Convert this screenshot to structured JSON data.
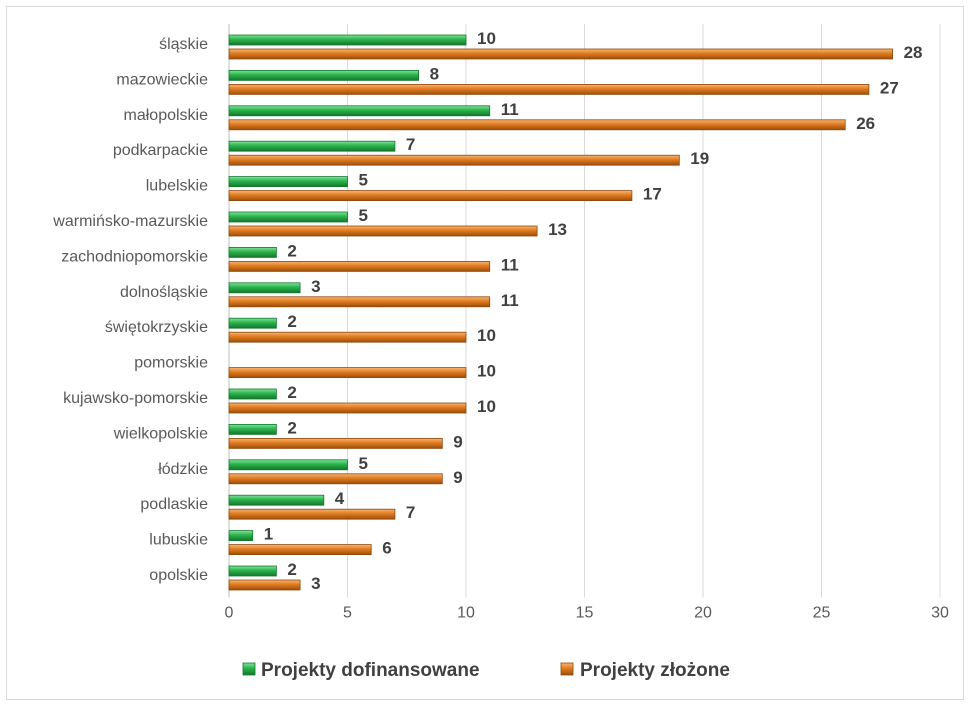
{
  "chart_data": {
    "type": "bar",
    "orientation": "horizontal",
    "categories": [
      "śląskie",
      "mazowieckie",
      "małopolskie",
      "podkarpackie",
      "lubelskie",
      "warmińsko-mazurskie",
      "zachodniopomorskie",
      "dolnośląskie",
      "świętokrzyskie",
      "pomorskie",
      "kujawsko-pomorskie",
      "wielkopolskie",
      "łódzkie",
      "podlaskie",
      "lubuskie",
      "opolskie"
    ],
    "series": [
      {
        "name": "Projekty dofinansowane",
        "color": "#2bb24c",
        "values": [
          10,
          8,
          11,
          7,
          5,
          5,
          2,
          3,
          2,
          null,
          2,
          2,
          5,
          4,
          1,
          2
        ]
      },
      {
        "name": "Projekty złożone",
        "color": "#e07b1f",
        "values": [
          28,
          27,
          26,
          19,
          17,
          13,
          11,
          11,
          10,
          10,
          10,
          9,
          9,
          7,
          6,
          3
        ]
      }
    ],
    "xlim": [
      0,
      30
    ],
    "xticks": [
      0,
      5,
      10,
      15,
      20,
      25,
      30
    ],
    "grid": "vertical",
    "legend": "bottom",
    "data_labels": true
  }
}
